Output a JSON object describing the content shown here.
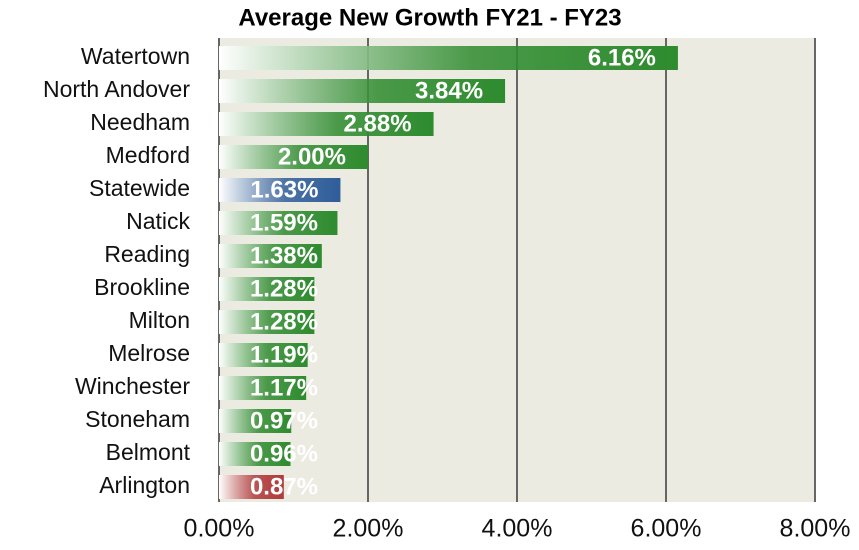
{
  "chart_data": {
    "type": "barh",
    "title": "Average New Growth FY21 - FY23",
    "categories": [
      "Watertown",
      "North Andover",
      "Needham",
      "Medford",
      "Statewide",
      "Natick",
      "Reading",
      "Brookline",
      "Milton",
      "Melrose",
      "Winchester",
      "Stoneham",
      "Belmont",
      "Arlington"
    ],
    "values": [
      6.16,
      3.84,
      2.88,
      2.0,
      1.63,
      1.59,
      1.38,
      1.28,
      1.28,
      1.19,
      1.17,
      0.97,
      0.96,
      0.87
    ],
    "value_labels": [
      "6.16%",
      "3.84%",
      "2.88%",
      "2.00%",
      "1.63%",
      "1.59%",
      "1.38%",
      "1.28%",
      "1.28%",
      "1.19%",
      "1.17%",
      "0.97%",
      "0.96%",
      "0.87%"
    ],
    "colors": [
      "#2e8b2e",
      "#2e8b2e",
      "#2e8b2e",
      "#2e8b2e",
      "#2f5d9a",
      "#2e8b2e",
      "#2e8b2e",
      "#2e8b2e",
      "#2e8b2e",
      "#2e8b2e",
      "#2e8b2e",
      "#2e8b2e",
      "#2e8b2e",
      "#b03a3a"
    ],
    "xlim": [
      0,
      8
    ],
    "xticks": [
      {
        "value": 0,
        "label": "0.00%"
      },
      {
        "value": 2,
        "label": "2.00%"
      },
      {
        "value": 4,
        "label": "4.00%"
      },
      {
        "value": 6,
        "label": "6.00%"
      },
      {
        "value": 8,
        "label": "8.00%"
      }
    ],
    "grid": true
  }
}
